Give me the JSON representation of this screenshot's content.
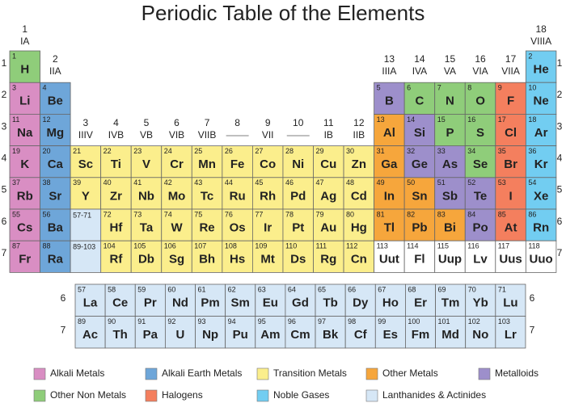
{
  "title": "Periodic Table of the Elements",
  "groups": [
    {
      "number": 1,
      "label": "IA"
    },
    {
      "number": 2,
      "label": "IIA"
    },
    {
      "number": 3,
      "label": "IIIV"
    },
    {
      "number": 4,
      "label": "IVB"
    },
    {
      "number": 5,
      "label": "VB"
    },
    {
      "number": 6,
      "label": "VIB"
    },
    {
      "number": 7,
      "label": "VIIB"
    },
    {
      "number": 8,
      "label": null
    },
    {
      "number": 9,
      "label": "VII"
    },
    {
      "number": 10,
      "label": null
    },
    {
      "number": 11,
      "label": "IB"
    },
    {
      "number": 12,
      "label": "IIB"
    },
    {
      "number": 13,
      "label": "IIIA"
    },
    {
      "number": 14,
      "label": "IVA"
    },
    {
      "number": 15,
      "label": "VA"
    },
    {
      "number": 16,
      "label": "VIA"
    },
    {
      "number": 17,
      "label": "VIIA"
    },
    {
      "number": 18,
      "label": "VIIIA"
    }
  ],
  "periods": [
    1,
    2,
    3,
    4,
    5,
    6,
    7
  ],
  "categories": [
    {
      "name": "Alkali Metals",
      "color": "#d98ec3",
      "elements": [
        [
          3,
          "Li"
        ],
        [
          11,
          "Na"
        ],
        [
          19,
          "K"
        ],
        [
          37,
          "Rb"
        ],
        [
          55,
          "Cs"
        ],
        [
          87,
          "Fr"
        ]
      ]
    },
    {
      "name": "Alkali Earth Metals",
      "color": "#6ea6d9",
      "elements": [
        [
          4,
          "Be"
        ],
        [
          12,
          "Mg"
        ],
        [
          20,
          "Ca"
        ],
        [
          38,
          "Sr"
        ],
        [
          56,
          "Ba"
        ],
        [
          88,
          "Ra"
        ]
      ]
    },
    {
      "name": "Transition Metals",
      "color": "#fbee8c",
      "elements": [
        [
          21,
          "Sc"
        ],
        [
          22,
          "Ti"
        ],
        [
          23,
          "V"
        ],
        [
          24,
          "Cr"
        ],
        [
          25,
          "Mn"
        ],
        [
          26,
          "Fe"
        ],
        [
          27,
          "Co"
        ],
        [
          28,
          "Ni"
        ],
        [
          29,
          "Cu"
        ],
        [
          30,
          "Zn"
        ],
        [
          39,
          "Y"
        ],
        [
          40,
          "Zr"
        ],
        [
          41,
          "Nb"
        ],
        [
          42,
          "Mo"
        ],
        [
          43,
          "Tc"
        ],
        [
          44,
          "Ru"
        ],
        [
          45,
          "Rh"
        ],
        [
          46,
          "Pd"
        ],
        [
          47,
          "Ag"
        ],
        [
          48,
          "Cd"
        ],
        [
          72,
          "Hf"
        ],
        [
          73,
          "Ta"
        ],
        [
          74,
          "W"
        ],
        [
          75,
          "Re"
        ],
        [
          76,
          "Os"
        ],
        [
          77,
          "Ir"
        ],
        [
          78,
          "Pt"
        ],
        [
          79,
          "Au"
        ],
        [
          80,
          "Hg"
        ],
        [
          104,
          "Rf"
        ],
        [
          105,
          "Db"
        ],
        [
          106,
          "Sg"
        ],
        [
          107,
          "Bh"
        ],
        [
          108,
          "Hs"
        ],
        [
          109,
          "Mt"
        ],
        [
          110,
          "Ds"
        ],
        [
          111,
          "Rg"
        ],
        [
          112,
          "Cn"
        ]
      ]
    },
    {
      "name": "Other Metals",
      "color": "#f6a63c",
      "elements": [
        [
          13,
          "Al"
        ],
        [
          31,
          "Ga"
        ],
        [
          49,
          "In"
        ],
        [
          50,
          "Sn"
        ],
        [
          81,
          "Tl"
        ],
        [
          82,
          "Pb"
        ],
        [
          83,
          "Bi"
        ]
      ]
    },
    {
      "name": "Metalloids",
      "color": "#9d8fcb",
      "elements": [
        [
          5,
          "B"
        ],
        [
          14,
          "Si"
        ],
        [
          32,
          "Ge"
        ],
        [
          33,
          "As"
        ],
        [
          51,
          "Sb"
        ],
        [
          52,
          "Te"
        ],
        [
          84,
          "Po"
        ]
      ]
    },
    {
      "name": "Other Non Metals",
      "color": "#8fcd7a",
      "elements": [
        [
          1,
          "H"
        ],
        [
          6,
          "C"
        ],
        [
          7,
          "N"
        ],
        [
          8,
          "O"
        ],
        [
          15,
          "P"
        ],
        [
          16,
          "S"
        ],
        [
          34,
          "Se"
        ]
      ]
    },
    {
      "name": "Halogens",
      "color": "#f47f5e",
      "elements": [
        [
          9,
          "F"
        ],
        [
          17,
          "Cl"
        ],
        [
          35,
          "Br"
        ],
        [
          53,
          "I"
        ],
        [
          85,
          "At"
        ]
      ]
    },
    {
      "name": "Noble Gases",
      "color": "#72cdf1",
      "elements": [
        [
          2,
          "He"
        ],
        [
          10,
          "Ne"
        ],
        [
          18,
          "Ar"
        ],
        [
          36,
          "Kr"
        ],
        [
          54,
          "Xe"
        ],
        [
          86,
          "Rn"
        ]
      ]
    },
    {
      "name": "Lanthanides & Actinides",
      "color": "#d6e7f6",
      "ranges": [
        "57-71",
        "89-103"
      ],
      "elements": [
        [
          57,
          "La"
        ],
        [
          58,
          "Ce"
        ],
        [
          59,
          "Pr"
        ],
        [
          60,
          "Nd"
        ],
        [
          61,
          "Pm"
        ],
        [
          62,
          "Sm"
        ],
        [
          63,
          "Eu"
        ],
        [
          64,
          "Gd"
        ],
        [
          65,
          "Tb"
        ],
        [
          66,
          "Dy"
        ],
        [
          67,
          "Ho"
        ],
        [
          68,
          "Er"
        ],
        [
          69,
          "Tm"
        ],
        [
          70,
          "Yb"
        ],
        [
          71,
          "Lu"
        ],
        [
          89,
          "Ac"
        ],
        [
          90,
          "Th"
        ],
        [
          91,
          "Pa"
        ],
        [
          92,
          "U"
        ],
        [
          93,
          "Np"
        ],
        [
          94,
          "Pu"
        ],
        [
          95,
          "Am"
        ],
        [
          96,
          "Cm"
        ],
        [
          97,
          "Bk"
        ],
        [
          98,
          "Cf"
        ],
        [
          99,
          "Es"
        ],
        [
          100,
          "Fm"
        ],
        [
          101,
          "Md"
        ],
        [
          102,
          "No"
        ],
        [
          103,
          "Lr"
        ]
      ]
    }
  ],
  "unclassified": [
    [
      113,
      "Uut"
    ],
    [
      114,
      "Fl"
    ],
    [
      115,
      "Uup"
    ],
    [
      116,
      "Lv"
    ],
    [
      117,
      "Uus"
    ],
    [
      118,
      "Uuo"
    ]
  ]
}
